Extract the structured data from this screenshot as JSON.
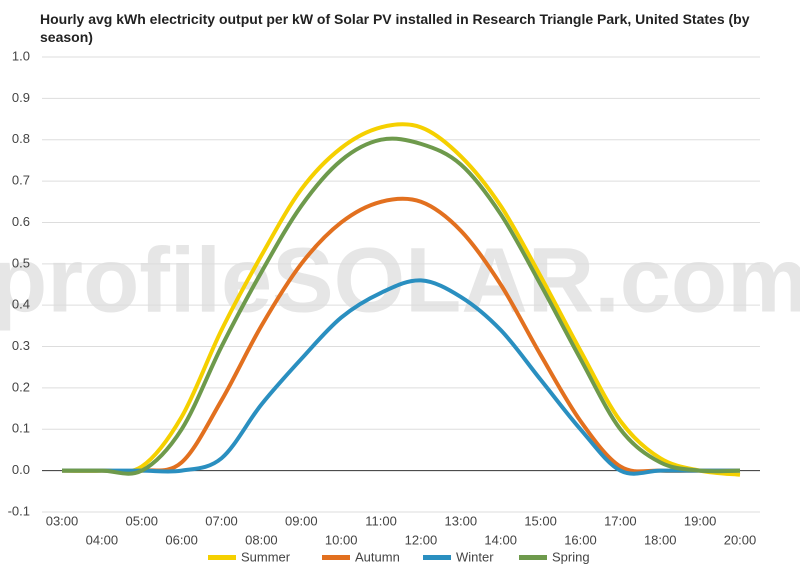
{
  "chart_data": {
    "type": "line",
    "title": "Hourly avg kWh electricity output per kW of Solar PV installed in Research Triangle Park, United States (by season)",
    "watermark": "profileSOLAR.com",
    "categories": [
      "03:00",
      "04:00",
      "05:00",
      "06:00",
      "07:00",
      "08:00",
      "09:00",
      "10:00",
      "11:00",
      "12:00",
      "13:00",
      "14:00",
      "15:00",
      "16:00",
      "17:00",
      "18:00",
      "19:00",
      "20:00"
    ],
    "series": [
      {
        "name": "Summer",
        "color": "#f5d000",
        "values": [
          0,
          0,
          0.01,
          0.13,
          0.34,
          0.52,
          0.68,
          0.78,
          0.83,
          0.83,
          0.76,
          0.64,
          0.47,
          0.29,
          0.12,
          0.03,
          0,
          -0.01
        ]
      },
      {
        "name": "Autumn",
        "color": "#e2701f",
        "values": [
          0,
          0,
          0,
          0.02,
          0.17,
          0.35,
          0.5,
          0.6,
          0.65,
          0.65,
          0.58,
          0.45,
          0.28,
          0.12,
          0.01,
          0,
          0,
          0
        ]
      },
      {
        "name": "Winter",
        "color": "#2a8fc0",
        "values": [
          0,
          0,
          0,
          0,
          0.03,
          0.16,
          0.27,
          0.37,
          0.43,
          0.46,
          0.42,
          0.34,
          0.22,
          0.1,
          0,
          0,
          0,
          0
        ]
      },
      {
        "name": "Spring",
        "color": "#6e9a4c",
        "values": [
          0,
          0,
          0,
          0.1,
          0.3,
          0.48,
          0.64,
          0.75,
          0.8,
          0.79,
          0.74,
          0.62,
          0.45,
          0.27,
          0.1,
          0.02,
          0,
          0
        ]
      }
    ],
    "ylim": [
      -0.1,
      1.0
    ],
    "yticks": [
      -0.1,
      {
        "value": 0,
        "label": "0.0"
      },
      0.1,
      0.2,
      0.3,
      0.4,
      0.5,
      0.6,
      0.7,
      0.8,
      0.9,
      {
        "value": 1,
        "label": "1.0"
      }
    ],
    "grid": true
  }
}
